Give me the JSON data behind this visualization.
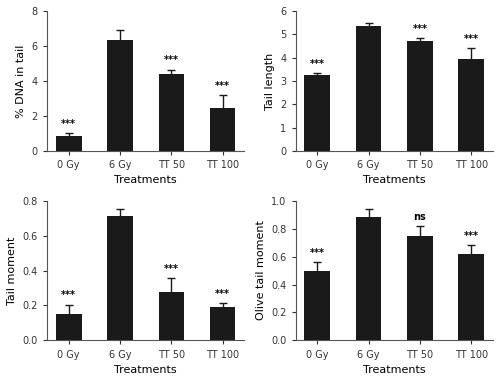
{
  "subplots": [
    {
      "ylabel": "% DNA in tail",
      "xlabel": "Treatments",
      "categories": [
        "0 Gy",
        "6 Gy",
        "TT 50",
        "TT 100"
      ],
      "values": [
        0.85,
        6.35,
        4.4,
        2.45
      ],
      "errors": [
        0.15,
        0.55,
        0.25,
        0.75
      ],
      "annotations": [
        "***",
        "",
        "***",
        "***"
      ],
      "ylim": [
        0,
        8
      ],
      "yticks": [
        0,
        2,
        4,
        6,
        8
      ]
    },
    {
      "ylabel": "Tail length",
      "xlabel": "Treatments",
      "categories": [
        "0 Gy",
        "6 Gy",
        "TT 50",
        "TT 100"
      ],
      "values": [
        3.25,
        5.35,
        4.7,
        3.95
      ],
      "errors": [
        0.1,
        0.12,
        0.12,
        0.45
      ],
      "annotations": [
        "***",
        "",
        "***",
        "***"
      ],
      "ylim": [
        0,
        6
      ],
      "yticks": [
        0,
        1,
        2,
        3,
        4,
        5,
        6
      ]
    },
    {
      "ylabel": "Tail moment",
      "xlabel": "Treatments",
      "categories": [
        "0 Gy",
        "6 Gy",
        "TT 50",
        "TT 100"
      ],
      "values": [
        0.15,
        0.71,
        0.28,
        0.19
      ],
      "errors": [
        0.055,
        0.04,
        0.075,
        0.025
      ],
      "annotations": [
        "***",
        "",
        "***",
        "***"
      ],
      "ylim": [
        0,
        0.8
      ],
      "yticks": [
        0,
        0.2,
        0.4,
        0.6,
        0.8
      ]
    },
    {
      "ylabel": "Olive tail moment",
      "xlabel": "Treatments",
      "categories": [
        "0 Gy",
        "6 Gy",
        "TT 50",
        "TT 100"
      ],
      "values": [
        0.5,
        0.88,
        0.75,
        0.62
      ],
      "errors": [
        0.06,
        0.06,
        0.07,
        0.06
      ],
      "annotations": [
        "***",
        "",
        "ns",
        "***"
      ],
      "ylim": [
        0,
        1.0
      ],
      "yticks": [
        0,
        0.2,
        0.4,
        0.6,
        0.8,
        1.0
      ]
    }
  ],
  "bar_color": "#1a1a1a",
  "bar_width": 0.5,
  "annotation_fontsize": 7,
  "label_fontsize": 8,
  "tick_fontsize": 7,
  "capsize": 3,
  "ecolor": "#1a1a1a",
  "elinewidth": 1.0
}
